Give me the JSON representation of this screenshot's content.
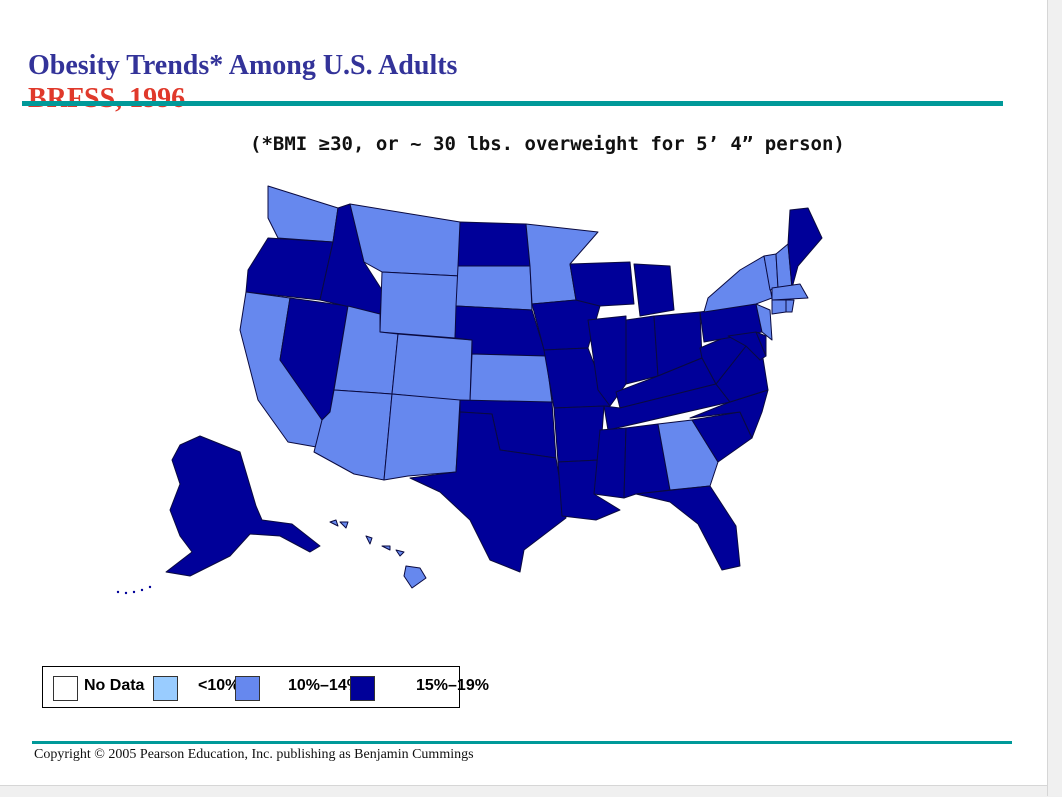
{
  "slide": {
    "title": "Obesity Trends* Among U.S. Adults",
    "subtitle": "BRFSS, 1996",
    "note": "(*BMI ≥30, or ~ 30 lbs. overweight for 5’ 4” person)",
    "copyright": "Copyright © 2005 Pearson Education, Inc. publishing as Benjamin Cummings"
  },
  "colors": {
    "title": "#333399",
    "subtitle": "#e0392b",
    "rule": "#009999",
    "no_data": "#ffffff",
    "lt10": "#99ccff",
    "p10_14": "#6688ee",
    "p15_19": "#000099"
  },
  "legend": {
    "items": [
      {
        "label": "No Data",
        "color": "#ffffff"
      },
      {
        "label": "<10%",
        "color": "#99ccff"
      },
      {
        "label": "10%–14%",
        "color": "#6688ee"
      },
      {
        "label": "15%–19%",
        "color": "#000099"
      }
    ]
  },
  "map": {
    "states": [
      {
        "name": "Washington",
        "category": "10%–14%"
      },
      {
        "name": "Oregon",
        "category": "15%–19%"
      },
      {
        "name": "California",
        "category": "10%–14%"
      },
      {
        "name": "Nevada",
        "category": "15%–19%"
      },
      {
        "name": "Idaho",
        "category": "15%–19%"
      },
      {
        "name": "Montana",
        "category": "10%–14%"
      },
      {
        "name": "Wyoming",
        "category": "10%–14%"
      },
      {
        "name": "Utah",
        "category": "10%–14%"
      },
      {
        "name": "Arizona",
        "category": "10%–14%"
      },
      {
        "name": "Colorado",
        "category": "10%–14%"
      },
      {
        "name": "New Mexico",
        "category": "10%–14%"
      },
      {
        "name": "North Dakota",
        "category": "15%–19%"
      },
      {
        "name": "South Dakota",
        "category": "10%–14%"
      },
      {
        "name": "Nebraska",
        "category": "15%–19%"
      },
      {
        "name": "Kansas",
        "category": "10%–14%"
      },
      {
        "name": "Oklahoma",
        "category": "15%–19%"
      },
      {
        "name": "Texas",
        "category": "15%–19%"
      },
      {
        "name": "Minnesota",
        "category": "10%–14%"
      },
      {
        "name": "Iowa",
        "category": "15%–19%"
      },
      {
        "name": "Missouri",
        "category": "15%–19%"
      },
      {
        "name": "Arkansas",
        "category": "15%–19%"
      },
      {
        "name": "Louisiana",
        "category": "15%–19%"
      },
      {
        "name": "Wisconsin",
        "category": "15%–19%"
      },
      {
        "name": "Illinois",
        "category": "15%–19%"
      },
      {
        "name": "Michigan",
        "category": "15%–19%"
      },
      {
        "name": "Indiana",
        "category": "15%–19%"
      },
      {
        "name": "Ohio",
        "category": "15%–19%"
      },
      {
        "name": "Kentucky",
        "category": "15%–19%"
      },
      {
        "name": "Tennessee",
        "category": "15%–19%"
      },
      {
        "name": "Mississippi",
        "category": "15%–19%"
      },
      {
        "name": "Alabama",
        "category": "15%–19%"
      },
      {
        "name": "Georgia",
        "category": "10%–14%"
      },
      {
        "name": "Florida",
        "category": "15%–19%"
      },
      {
        "name": "South Carolina",
        "category": "15%–19%"
      },
      {
        "name": "North Carolina",
        "category": "15%–19%"
      },
      {
        "name": "Virginia",
        "category": "15%–19%"
      },
      {
        "name": "West Virginia",
        "category": "15%–19%"
      },
      {
        "name": "Pennsylvania",
        "category": "15%–19%"
      },
      {
        "name": "New York",
        "category": "10%–14%"
      },
      {
        "name": "Vermont",
        "category": "10%–14%"
      },
      {
        "name": "New Hampshire",
        "category": "10%–14%"
      },
      {
        "name": "Maine",
        "category": "15%–19%"
      },
      {
        "name": "Massachusetts",
        "category": "10%–14%"
      },
      {
        "name": "Connecticut",
        "category": "10%–14%"
      },
      {
        "name": "Rhode Island",
        "category": "10%–14%"
      },
      {
        "name": "New Jersey",
        "category": "10%–14%"
      },
      {
        "name": "Maryland",
        "category": "15%–19%"
      },
      {
        "name": "Delaware",
        "category": "15%–19%"
      },
      {
        "name": "Alaska",
        "category": "15%–19%"
      },
      {
        "name": "Hawaii",
        "category": "10%–14%"
      }
    ]
  }
}
